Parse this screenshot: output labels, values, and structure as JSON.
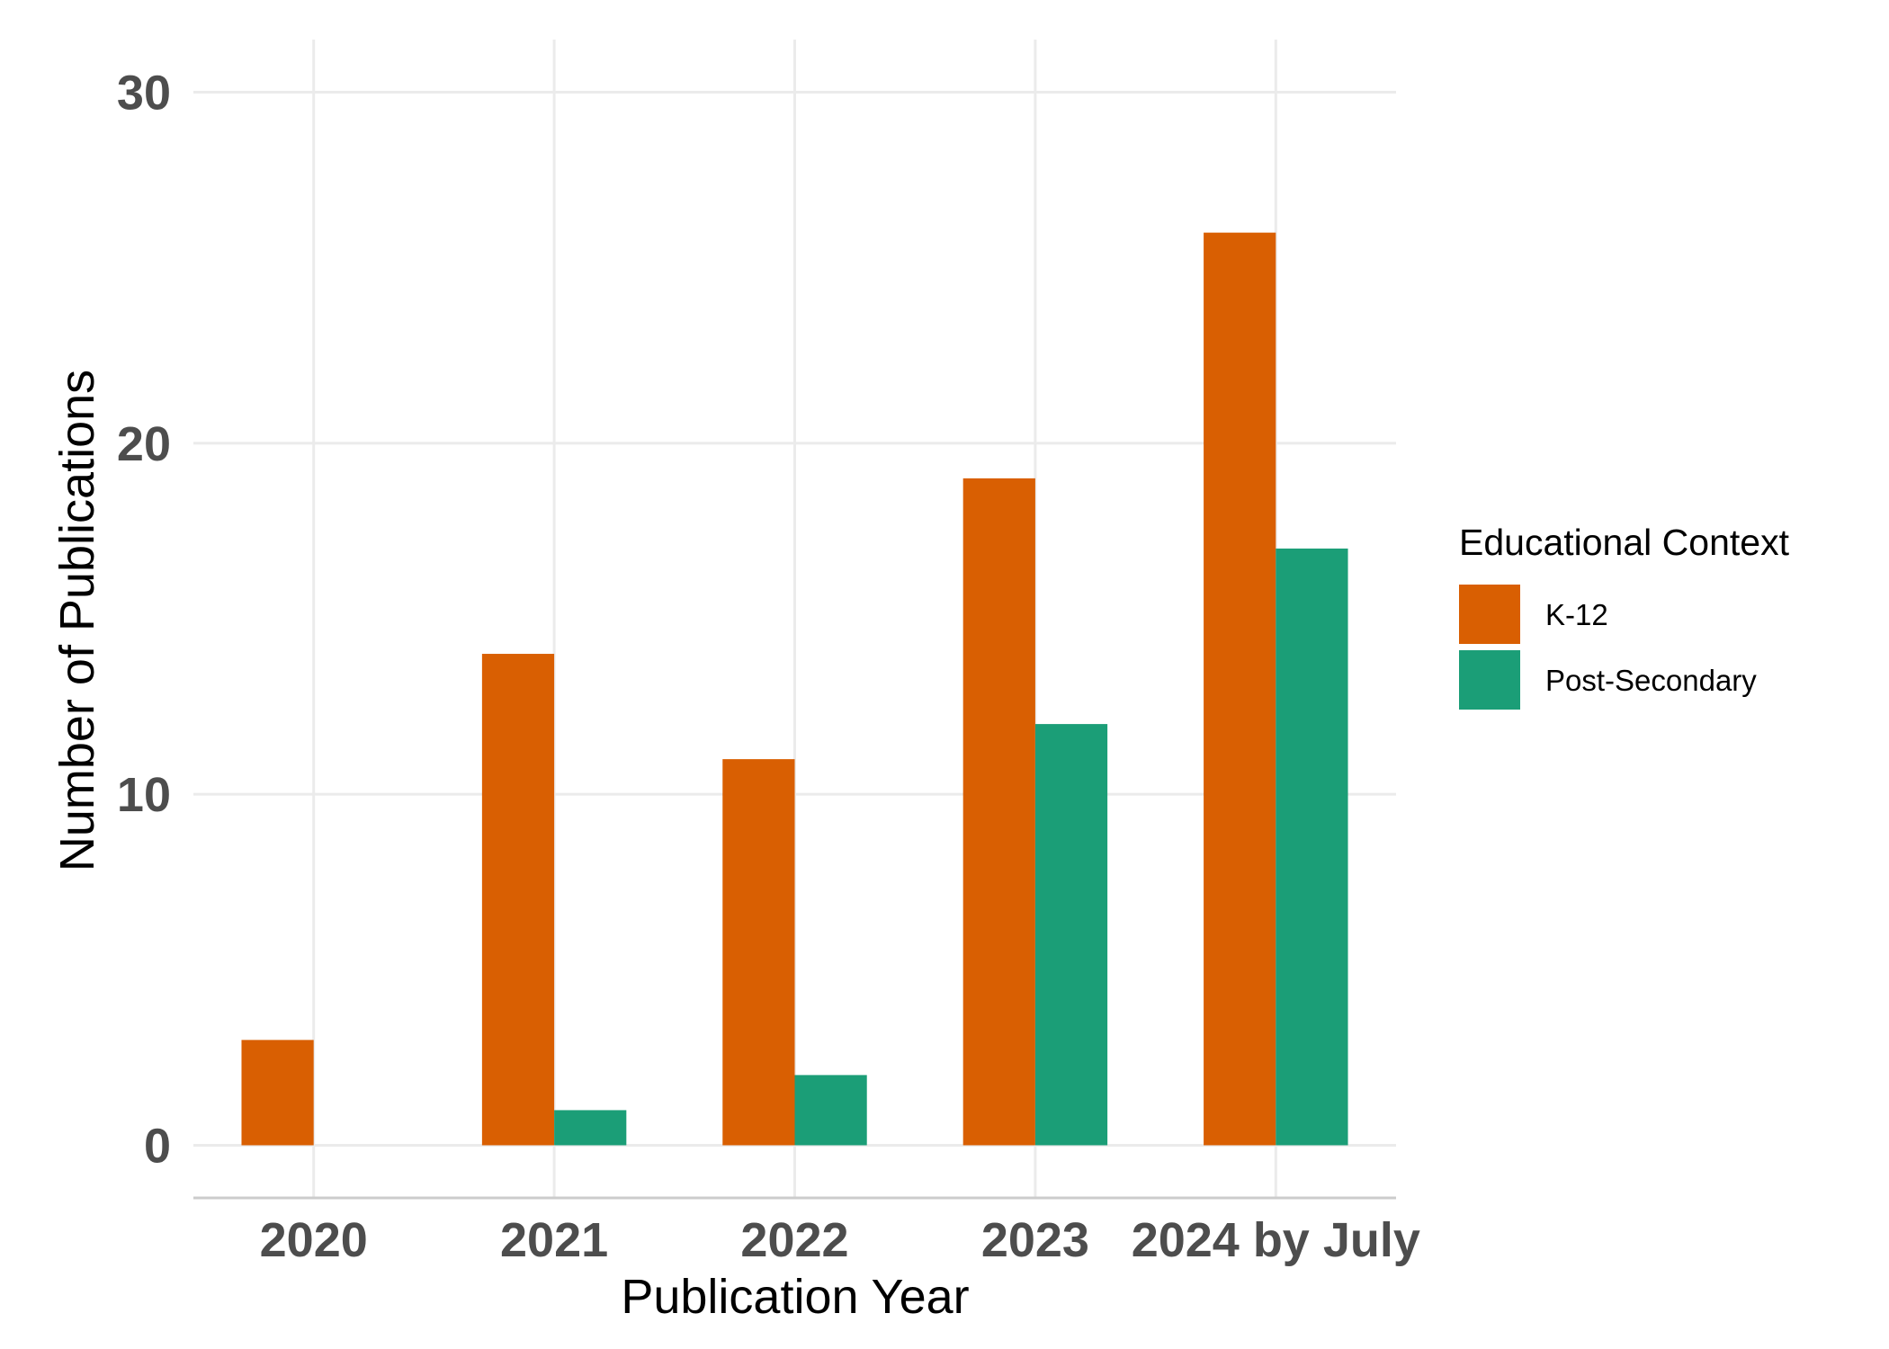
{
  "chart_data": {
    "type": "bar",
    "categories": [
      "2020",
      "2021",
      "2022",
      "2023",
      "2024 by July"
    ],
    "series": [
      {
        "name": "K-12",
        "values": [
          3,
          14,
          11,
          19,
          26
        ],
        "color": "#d95f02"
      },
      {
        "name": "Post-Secondary",
        "values": [
          0,
          1,
          2,
          12,
          17
        ],
        "color": "#1b9e77"
      }
    ],
    "xlabel": "Publication Year",
    "ylabel": "Number of Publications",
    "ylim": [
      -1.5,
      31.5
    ],
    "yticks": [
      0,
      10,
      20,
      30
    ],
    "grid": true,
    "legend": {
      "title": "Educational Context",
      "placement": "right"
    }
  }
}
